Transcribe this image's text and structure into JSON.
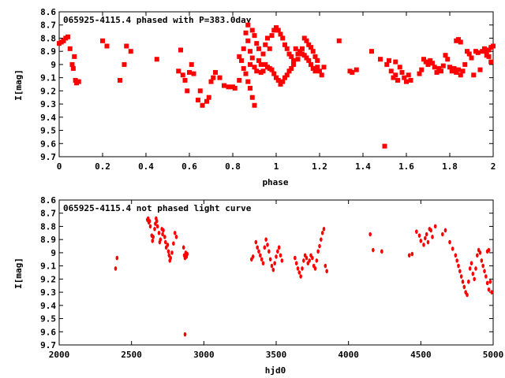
{
  "chart_data": [
    {
      "type": "scatter",
      "title": "065925-4115.4 phased with P=383.0day",
      "xlabel": "phase",
      "ylabel": "I[mag]",
      "xlim": [
        0,
        2
      ],
      "ylim": [
        8.6,
        9.7
      ],
      "y_inverted": true,
      "x_ticks": [
        "0",
        "0.2",
        "0.4",
        "0.6",
        "0.8",
        "1",
        "1.2",
        "1.4",
        "1.6",
        "1.8",
        "2"
      ],
      "y_ticks": [
        "8.6",
        "8.7",
        "8.8",
        "8.9",
        "9",
        "9.1",
        "9.2",
        "9.3",
        "9.4",
        "9.5",
        "9.6",
        "9.7"
      ],
      "color": "#ff0000",
      "points": [
        [
          0.0,
          8.84
        ],
        [
          0.01,
          8.83
        ],
        [
          0.02,
          8.82
        ],
        [
          0.03,
          8.8
        ],
        [
          0.04,
          8.79
        ],
        [
          0.05,
          8.88
        ],
        [
          0.06,
          9.0
        ],
        [
          0.065,
          9.03
        ],
        [
          0.07,
          8.94
        ],
        [
          0.075,
          9.12
        ],
        [
          0.08,
          9.14
        ],
        [
          0.09,
          9.13
        ],
        [
          0.2,
          8.82
        ],
        [
          0.22,
          8.86
        ],
        [
          0.28,
          9.12
        ],
        [
          0.3,
          9.0
        ],
        [
          0.31,
          8.86
        ],
        [
          0.33,
          8.9
        ],
        [
          0.45,
          8.96
        ],
        [
          0.56,
          8.89
        ],
        [
          0.55,
          9.05
        ],
        [
          0.57,
          9.08
        ],
        [
          0.58,
          9.12
        ],
        [
          0.59,
          9.2
        ],
        [
          0.6,
          9.06
        ],
        [
          0.61,
          9.0
        ],
        [
          0.62,
          9.07
        ],
        [
          0.64,
          9.27
        ],
        [
          0.65,
          9.2
        ],
        [
          0.66,
          9.31
        ],
        [
          0.68,
          9.28
        ],
        [
          0.69,
          9.25
        ],
        [
          0.7,
          9.13
        ],
        [
          0.71,
          9.1
        ],
        [
          0.72,
          9.06
        ],
        [
          0.74,
          9.1
        ],
        [
          0.76,
          9.16
        ],
        [
          0.78,
          9.17
        ],
        [
          0.8,
          9.17
        ],
        [
          0.81,
          9.18
        ],
        [
          0.83,
          8.94
        ],
        [
          0.83,
          9.12
        ],
        [
          0.84,
          8.97
        ],
        [
          0.85,
          8.88
        ],
        [
          0.85,
          9.03
        ],
        [
          0.86,
          8.76
        ],
        [
          0.86,
          9.07
        ],
        [
          0.87,
          8.7
        ],
        [
          0.87,
          8.82
        ],
        [
          0.88,
          8.9
        ],
        [
          0.88,
          9.0
        ],
        [
          0.89,
          8.74
        ],
        [
          0.89,
          8.95
        ],
        [
          0.9,
          8.78
        ],
        [
          0.9,
          9.02
        ],
        [
          0.91,
          8.84
        ],
        [
          0.91,
          9.05
        ],
        [
          0.92,
          8.88
        ],
        [
          0.92,
          8.97
        ],
        [
          0.93,
          9.0
        ],
        [
          0.93,
          9.06
        ],
        [
          0.94,
          8.92
        ],
        [
          0.94,
          9.05
        ],
        [
          0.95,
          8.85
        ],
        [
          0.95,
          9.0
        ],
        [
          0.96,
          8.8
        ],
        [
          0.96,
          9.02
        ],
        [
          0.97,
          8.88
        ],
        [
          0.97,
          9.03
        ],
        [
          0.98,
          8.78
        ],
        [
          0.98,
          9.04
        ],
        [
          0.99,
          8.74
        ],
        [
          0.99,
          9.07
        ],
        [
          1.0,
          8.72
        ],
        [
          1.0,
          9.1
        ],
        [
          1.01,
          8.74
        ],
        [
          1.01,
          9.12
        ],
        [
          1.02,
          8.77
        ],
        [
          1.02,
          9.15
        ],
        [
          1.03,
          8.8
        ],
        [
          1.03,
          9.13
        ],
        [
          1.04,
          8.85
        ],
        [
          1.04,
          9.1
        ],
        [
          1.05,
          8.88
        ],
        [
          1.05,
          9.08
        ],
        [
          1.06,
          8.92
        ],
        [
          1.06,
          9.05
        ],
        [
          1.07,
          8.94
        ],
        [
          1.07,
          9.03
        ],
        [
          1.08,
          8.97
        ],
        [
          1.08,
          9.0
        ],
        [
          1.09,
          8.88
        ],
        [
          1.1,
          8.96
        ],
        [
          1.1,
          8.92
        ],
        [
          1.11,
          8.9
        ],
        [
          1.12,
          8.88
        ],
        [
          1.12,
          8.92
        ],
        [
          1.13,
          8.8
        ],
        [
          1.13,
          8.93
        ],
        [
          1.14,
          8.82
        ],
        [
          1.14,
          8.95
        ],
        [
          1.15,
          8.85
        ],
        [
          1.15,
          8.97
        ],
        [
          1.16,
          8.87
        ],
        [
          1.16,
          9.0
        ],
        [
          1.17,
          8.9
        ],
        [
          1.17,
          9.03
        ],
        [
          1.18,
          8.94
        ],
        [
          1.18,
          9.05
        ],
        [
          1.19,
          8.97
        ],
        [
          1.19,
          9.02
        ],
        [
          1.2,
          9.05
        ],
        [
          1.21,
          9.08
        ],
        [
          1.22,
          9.02
        ],
        [
          0.87,
          9.13
        ],
        [
          0.88,
          9.18
        ],
        [
          0.89,
          9.25
        ],
        [
          0.9,
          9.31
        ],
        [
          1.29,
          8.82
        ],
        [
          1.34,
          9.05
        ],
        [
          1.35,
          9.06
        ],
        [
          1.37,
          9.04
        ],
        [
          1.44,
          8.9
        ],
        [
          1.48,
          8.96
        ],
        [
          1.5,
          9.62
        ],
        [
          1.51,
          9.0
        ],
        [
          1.52,
          8.97
        ],
        [
          1.53,
          9.05
        ],
        [
          1.54,
          9.1
        ],
        [
          1.55,
          9.08
        ],
        [
          1.55,
          8.98
        ],
        [
          1.56,
          9.12
        ],
        [
          1.57,
          9.02
        ],
        [
          1.58,
          9.06
        ],
        [
          1.59,
          9.1
        ],
        [
          1.6,
          9.13
        ],
        [
          1.61,
          9.08
        ],
        [
          1.62,
          9.12
        ],
        [
          1.66,
          9.07
        ],
        [
          1.67,
          9.04
        ],
        [
          1.68,
          8.96
        ],
        [
          1.69,
          8.98
        ],
        [
          1.7,
          9.0
        ],
        [
          1.71,
          8.97
        ],
        [
          1.72,
          8.99
        ],
        [
          1.73,
          9.02
        ],
        [
          1.74,
          9.06
        ],
        [
          1.75,
          9.03
        ],
        [
          1.76,
          9.05
        ],
        [
          1.77,
          9.01
        ],
        [
          1.78,
          8.93
        ],
        [
          1.79,
          8.96
        ],
        [
          1.8,
          9.02
        ],
        [
          1.81,
          9.05
        ],
        [
          1.82,
          9.03
        ],
        [
          1.83,
          9.06
        ],
        [
          1.84,
          9.04
        ],
        [
          1.85,
          9.08
        ],
        [
          1.86,
          9.05
        ],
        [
          1.87,
          9.0
        ],
        [
          1.83,
          8.82
        ],
        [
          1.84,
          8.81
        ],
        [
          1.85,
          8.83
        ],
        [
          1.88,
          8.9
        ],
        [
          1.89,
          8.92
        ],
        [
          1.9,
          8.95
        ],
        [
          1.91,
          9.08
        ],
        [
          1.92,
          8.9
        ],
        [
          1.93,
          8.91
        ],
        [
          1.94,
          9.04
        ],
        [
          1.95,
          8.9
        ],
        [
          1.96,
          8.88
        ],
        [
          1.97,
          8.9
        ],
        [
          1.98,
          8.89
        ],
        [
          1.99,
          8.87
        ],
        [
          2.0,
          8.86
        ],
        [
          1.98,
          8.94
        ],
        [
          1.99,
          8.98
        ],
        [
          1.97,
          8.93
        ]
      ]
    },
    {
      "type": "scatter",
      "title": "065925-4115.4 not phased light curve",
      "xlabel": "hjd0",
      "ylabel": "I[mag]",
      "xlim": [
        2000,
        5000
      ],
      "ylim": [
        8.6,
        9.7
      ],
      "y_inverted": true,
      "x_ticks": [
        "2000",
        "2500",
        "3000",
        "3500",
        "4000",
        "4500",
        "5000"
      ],
      "y_ticks": [
        "8.6",
        "8.7",
        "8.8",
        "8.9",
        "9",
        "9.1",
        "9.2",
        "9.3",
        "9.4",
        "9.5",
        "9.6",
        "9.7"
      ],
      "color": "#ff0000",
      "points": [
        [
          2390,
          9.12
        ],
        [
          2400,
          9.04
        ],
        [
          2610,
          8.75
        ],
        [
          2615,
          8.74
        ],
        [
          2620,
          8.77
        ],
        [
          2625,
          8.76
        ],
        [
          2630,
          8.8
        ],
        [
          2640,
          8.87
        ],
        [
          2645,
          8.91
        ],
        [
          2650,
          8.88
        ],
        [
          2660,
          8.82
        ],
        [
          2665,
          8.78
        ],
        [
          2670,
          8.74
        ],
        [
          2675,
          8.76
        ],
        [
          2680,
          8.8
        ],
        [
          2690,
          8.85
        ],
        [
          2695,
          8.92
        ],
        [
          2700,
          8.9
        ],
        [
          2710,
          8.82
        ],
        [
          2715,
          8.86
        ],
        [
          2720,
          8.83
        ],
        [
          2730,
          8.88
        ],
        [
          2735,
          8.92
        ],
        [
          2740,
          8.96
        ],
        [
          2750,
          8.94
        ],
        [
          2755,
          8.99
        ],
        [
          2760,
          9.02
        ],
        [
          2765,
          9.06
        ],
        [
          2770,
          9.04
        ],
        [
          2780,
          9.0
        ],
        [
          2790,
          8.93
        ],
        [
          2800,
          8.85
        ],
        [
          2810,
          8.88
        ],
        [
          2860,
          8.96
        ],
        [
          2865,
          9.02
        ],
        [
          2870,
          9.04
        ],
        [
          2875,
          9.0
        ],
        [
          2880,
          9.03
        ],
        [
          2885,
          9.01
        ],
        [
          2870,
          9.62
        ],
        [
          3330,
          9.05
        ],
        [
          3340,
          9.03
        ],
        [
          3360,
          8.92
        ],
        [
          3370,
          8.96
        ],
        [
          3380,
          8.99
        ],
        [
          3390,
          9.02
        ],
        [
          3400,
          9.05
        ],
        [
          3410,
          9.08
        ],
        [
          3420,
          8.96
        ],
        [
          3430,
          8.9
        ],
        [
          3440,
          8.94
        ],
        [
          3450,
          8.99
        ],
        [
          3460,
          9.05
        ],
        [
          3470,
          9.1
        ],
        [
          3480,
          9.13
        ],
        [
          3490,
          9.08
        ],
        [
          3500,
          9.03
        ],
        [
          3510,
          8.99
        ],
        [
          3520,
          8.96
        ],
        [
          3530,
          9.02
        ],
        [
          3540,
          9.06
        ],
        [
          3630,
          9.04
        ],
        [
          3640,
          9.08
        ],
        [
          3650,
          9.12
        ],
        [
          3660,
          9.15
        ],
        [
          3670,
          9.18
        ],
        [
          3680,
          9.12
        ],
        [
          3690,
          9.06
        ],
        [
          3700,
          9.02
        ],
        [
          3710,
          9.04
        ],
        [
          3720,
          9.08
        ],
        [
          3730,
          9.06
        ],
        [
          3740,
          9.02
        ],
        [
          3750,
          9.04
        ],
        [
          3760,
          9.1
        ],
        [
          3770,
          9.12
        ],
        [
          3780,
          9.06
        ],
        [
          3790,
          8.99
        ],
        [
          3800,
          8.95
        ],
        [
          3810,
          8.9
        ],
        [
          3820,
          8.85
        ],
        [
          3830,
          8.82
        ],
        [
          3840,
          9.1
        ],
        [
          3850,
          9.14
        ],
        [
          4150,
          8.86
        ],
        [
          4170,
          8.98
        ],
        [
          4230,
          8.99
        ],
        [
          4420,
          9.02
        ],
        [
          4440,
          9.01
        ],
        [
          4470,
          8.84
        ],
        [
          4490,
          8.87
        ],
        [
          4500,
          8.91
        ],
        [
          4520,
          8.94
        ],
        [
          4530,
          8.89
        ],
        [
          4540,
          8.86
        ],
        [
          4550,
          8.92
        ],
        [
          4560,
          8.82
        ],
        [
          4570,
          8.83
        ],
        [
          4580,
          8.88
        ],
        [
          4600,
          8.8
        ],
        [
          4650,
          8.86
        ],
        [
          4670,
          8.83
        ],
        [
          4700,
          8.92
        ],
        [
          4720,
          8.97
        ],
        [
          4740,
          9.02
        ],
        [
          4750,
          9.06
        ],
        [
          4760,
          9.1
        ],
        [
          4770,
          9.14
        ],
        [
          4780,
          9.18
        ],
        [
          4790,
          9.22
        ],
        [
          4800,
          9.26
        ],
        [
          4810,
          9.3
        ],
        [
          4820,
          9.32
        ],
        [
          4830,
          9.22
        ],
        [
          4840,
          9.12
        ],
        [
          4850,
          9.08
        ],
        [
          4860,
          9.16
        ],
        [
          4870,
          9.2
        ],
        [
          4880,
          9.12
        ],
        [
          4890,
          9.02
        ],
        [
          4900,
          8.98
        ],
        [
          4910,
          9.0
        ],
        [
          4920,
          9.06
        ],
        [
          4930,
          9.1
        ],
        [
          4940,
          9.14
        ],
        [
          4950,
          9.18
        ],
        [
          4960,
          9.23
        ],
        [
          4970,
          9.28
        ],
        [
          4980,
          9.22
        ],
        [
          4990,
          9.3
        ],
        [
          4960,
          8.99
        ],
        [
          4970,
          8.98
        ]
      ]
    }
  ]
}
